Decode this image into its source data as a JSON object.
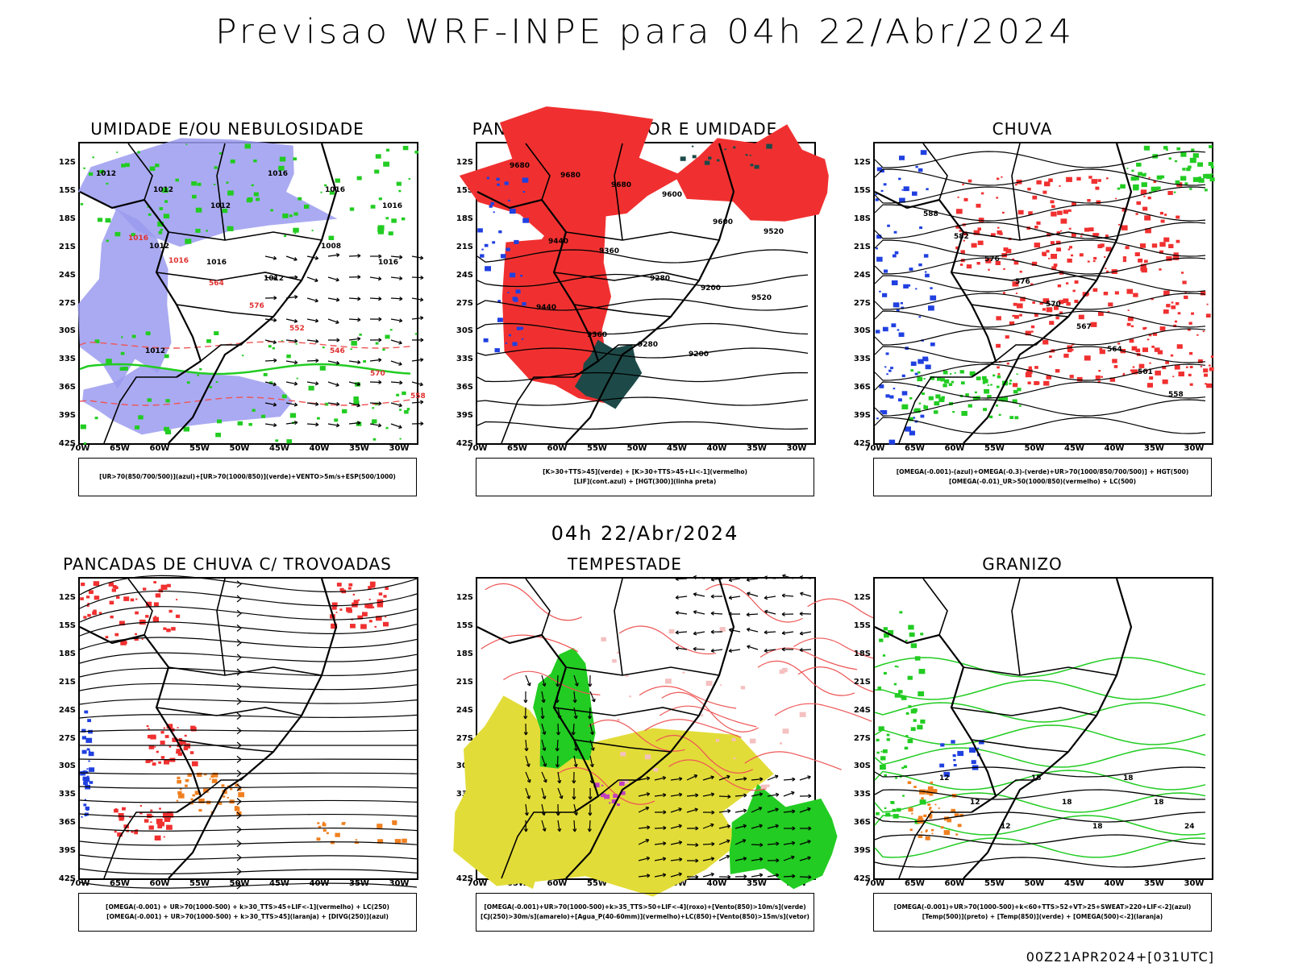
{
  "header": {
    "title": "Previsao WRF-INPE  para 04h 22/Abr/2024",
    "mid_date": "04h 22/Abr/2024",
    "footer_code": "00Z21APR2024+[031UTC]"
  },
  "axes": {
    "lat_ticks": [
      "12S",
      "15S",
      "18S",
      "21S",
      "24S",
      "27S",
      "30S",
      "33S",
      "36S",
      "39S",
      "42S"
    ],
    "lon_ticks": [
      "70W",
      "65W",
      "60W",
      "55W",
      "50W",
      "45W",
      "40W",
      "35W",
      "30W"
    ]
  },
  "colors": {
    "humidity_blue": "#9b9bf0",
    "green": "#22cc22",
    "red": "#f03030",
    "dark_teal": "#1d4a48",
    "blue": "#2040e0",
    "yellow": "#e2dc38",
    "orange": "#f08020",
    "magenta": "#c040c0",
    "salmon_line": "#ee5555"
  },
  "panels": [
    {
      "id": "umidade",
      "title": "UMIDADE E/OU NEBULOSIDADE",
      "legend": [
        "[UR>70(850/700/500)](azul)+[UR>70(1000/850)](verde)+VENTO>5m/s+ESP(500/1000)"
      ],
      "contour_labels": [
        "1012",
        "1012",
        "1012",
        "1016",
        "1016",
        "1016",
        "1012",
        "1016",
        "1012",
        "1008",
        "1016",
        "1012",
        "1016",
        "1016",
        "564",
        "576",
        "552",
        "546",
        "570",
        "558"
      ]
    },
    {
      "id": "pancadas_calor",
      "title": "PANCADAS POR CALOR E UMIDADE",
      "legend": [
        "[K>30+TTS>45](verde) + [K>30+TTS>45+LI<-1](vermelho)",
        "[LIF](cont.azul) + [HGT(300)](linha preta)"
      ],
      "contour_labels": [
        "9680",
        "9680",
        "9680",
        "9600",
        "9600",
        "9520",
        "9440",
        "9360",
        "9280",
        "9200",
        "9520",
        "9440",
        "9360",
        "9280",
        "9200"
      ]
    },
    {
      "id": "chuva",
      "title": "CHUVA",
      "legend": [
        "[OMEGA(-0.001)-(azul)+OMEGA(-0.3)-(verde)+UR>70(1000/850/700/500)] + HGT(500)",
        "[OMEGA(-0.01)_UR>50(1000/850)(vermelho) + LC(500)"
      ],
      "contour_labels": [
        "588",
        "582",
        "576",
        "576",
        "570",
        "567",
        "564",
        "561",
        "558"
      ]
    },
    {
      "id": "trovoadas",
      "title": "PANCADAS DE CHUVA C/ TROVOADAS",
      "legend": [
        "[OMEGA(-0.001) + UR>70(1000-500) + k>30_TTS>45+LIF<-1](vermelho) + LC(250)",
        "[OMEGA(-0.001) + UR>70(1000-500) + k>30_TTS>45](laranja) + [DIVG(250)](azul)"
      ],
      "contour_labels": []
    },
    {
      "id": "tempestade",
      "title": "TEMPESTADE",
      "legend": [
        "[OMEGA(-0.001)+UR>70(1000-500)+k>35_TTS>50+LIF<-4](roxo)+[Vento(850)>10m/s](verde)",
        "[CJ(250)>30m/s](amarelo)+[Agua_P(40-60mm)](vermelho)+LC(850)+[Vento(850)>15m/s](vetor)"
      ],
      "contour_labels": []
    },
    {
      "id": "granizo",
      "title": "GRANIZO",
      "legend": [
        "[OMEGA(-0.001)+UR>70(1000-500)+k<60+TTS>52+VT>25+SWEAT>220+LIF<-2](azul)",
        "[Temp(500)](preto) + [Temp(850)](verde) + [OMEGA(500)<-2](laranja)"
      ],
      "contour_labels": [
        "12",
        "12",
        "12",
        "18",
        "18",
        "18",
        "18",
        "18",
        "24"
      ]
    }
  ]
}
